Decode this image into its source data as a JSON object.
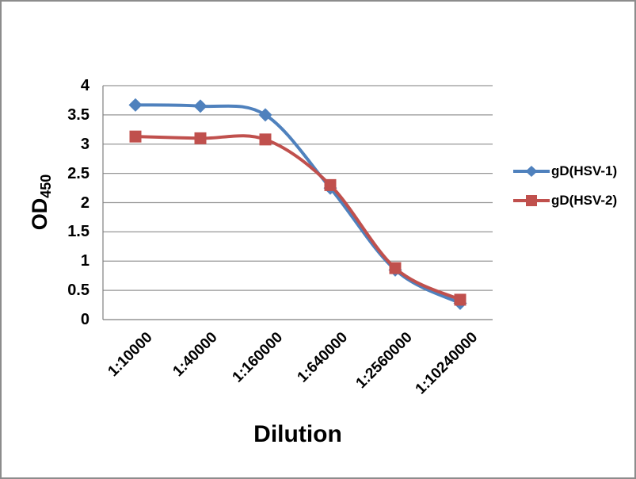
{
  "chart_data": {
    "type": "line",
    "title": "",
    "categories": [
      "1:10000",
      "1:40000",
      "1:160000",
      "1:640000",
      "1:2560000",
      "1:10240000"
    ],
    "series": [
      {
        "name": "gD(HSV-1)",
        "color": "#4F81BD",
        "marker": "diamond",
        "values": [
          3.67,
          3.65,
          3.5,
          2.25,
          0.85,
          0.28
        ]
      },
      {
        "name": "gD(HSV-2)",
        "color": "#C0504D",
        "marker": "square",
        "values": [
          3.13,
          3.1,
          3.08,
          2.3,
          0.88,
          0.34
        ]
      }
    ],
    "xlabel": "Dilution",
    "ylabel_main": "OD",
    "ylabel_sub": "450",
    "ylim": [
      0,
      4
    ],
    "yticks": [
      0,
      0.5,
      1,
      1.5,
      2,
      2.5,
      3,
      3.5,
      4
    ],
    "grid": true,
    "line_smoothing": true,
    "legend_position": "right"
  },
  "style": {
    "gridline_color": "#969696",
    "axis_color": "#7F7F7F",
    "text_color": "#000000",
    "frame_border_color": "#8C8C8C",
    "background_color": "#FFFFFF"
  }
}
